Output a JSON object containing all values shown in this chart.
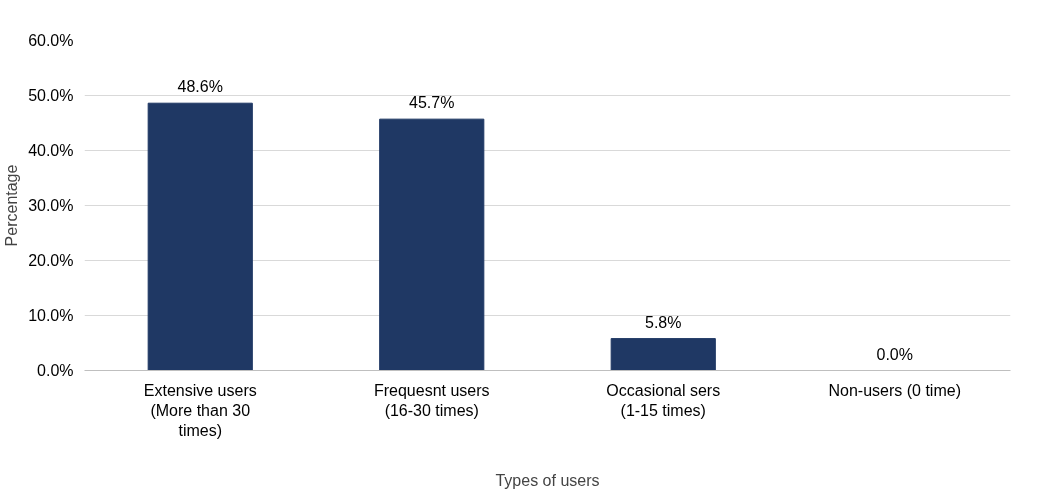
{
  "chart_data": {
    "type": "bar",
    "xlabel": "Types of users",
    "ylabel": "Percentage",
    "categories": [
      "Extensive users (More than 30 times)",
      "Frequesnt users (16-30 times)",
      "Occasional sers (1-15 times)",
      "Non-users (0 time)"
    ],
    "values": [
      48.6,
      45.7,
      5.8,
      0.0
    ],
    "color": "#1f3864",
    "value_labels": [
      "48.6%",
      "45.7%",
      "5.8%",
      "0.0%"
    ],
    "ylim": [
      0,
      60
    ],
    "yticks": [
      {
        "value": 0,
        "label": "0.0%"
      },
      {
        "value": 10,
        "label": "10.0%"
      },
      {
        "value": 20,
        "label": "20.0%"
      },
      {
        "value": 30,
        "label": "30.0%"
      },
      {
        "value": 40,
        "label": "40.0%"
      },
      {
        "value": 50,
        "label": "50.0%"
      },
      {
        "value": 60,
        "label": "60.0%"
      }
    ],
    "grid": "y"
  }
}
